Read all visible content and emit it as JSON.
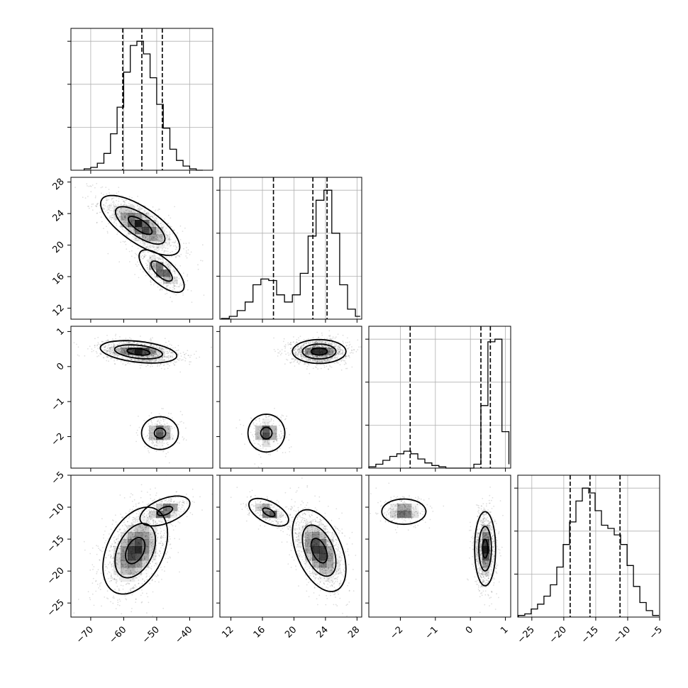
{
  "chart_data": {
    "type": "corner",
    "parameters": [
      {
        "range": [
          -76,
          -33
        ],
        "ticks": [
          -70,
          -60,
          -50,
          -40
        ],
        "tick_labels": [
          "−70",
          "−60",
          "−50",
          "−40"
        ]
      },
      {
        "range": [
          10.6,
          28.6
        ],
        "ticks": [
          12,
          16,
          20,
          24,
          28
        ],
        "tick_labels": [
          "12",
          "16",
          "20",
          "24",
          "28"
        ]
      },
      {
        "range": [
          -2.9,
          1.15
        ],
        "ticks": [
          -2,
          -1,
          0,
          1
        ],
        "tick_labels": [
          "−2",
          "−1",
          "0",
          "1"
        ]
      },
      {
        "range": [
          -27.2,
          -5
        ],
        "ticks": [
          -25,
          -20,
          -15,
          -10,
          -5
        ],
        "tick_labels": [
          "−25",
          "−20",
          "−15",
          "−10",
          "−5"
        ]
      }
    ],
    "histograms": [
      {
        "param": 0,
        "quantiles": [
          -60.3,
          -54.5,
          -48.3
        ],
        "bin_edges": [
          -72,
          -70,
          -68,
          -66,
          -64,
          -62,
          -60,
          -58,
          -56,
          -54,
          -52,
          -50,
          -48,
          -46,
          -44,
          -42,
          -40,
          -38,
          -36
        ],
        "counts": [
          1,
          2,
          5,
          12,
          26,
          45,
          70,
          89,
          92,
          83,
          66,
          47,
          30,
          15,
          7,
          3,
          1,
          0
        ]
      },
      {
        "param": 1,
        "quantiles": [
          17.4,
          22.4,
          24.2
        ],
        "bin_edges": [
          10.8,
          11.8,
          12.8,
          13.8,
          14.8,
          15.8,
          16.8,
          17.8,
          18.8,
          19.8,
          20.8,
          21.8,
          22.8,
          23.8,
          24.8,
          25.8,
          26.8,
          27.8,
          28.4
        ],
        "counts": [
          0.5,
          2,
          6,
          12,
          24,
          28,
          27,
          17,
          12,
          17,
          32,
          58,
          83,
          90,
          60,
          24,
          7,
          2
        ]
      },
      {
        "param": 2,
        "quantiles": [
          -1.72,
          0.3,
          0.57
        ],
        "bin_edges": [
          -2.9,
          -2.7,
          -2.5,
          -2.3,
          -2.1,
          -1.9,
          -1.7,
          -1.5,
          -1.3,
          -1.1,
          -0.9,
          -0.7,
          -0.5,
          -0.3,
          -0.1,
          0.1,
          0.3,
          0.5,
          0.7,
          0.9,
          1.1
        ],
        "counts": [
          1,
          3,
          6,
          9,
          11,
          13,
          11,
          7,
          4,
          2,
          1,
          0,
          0,
          0,
          0,
          3,
          48,
          97,
          99,
          28,
          3
        ]
      },
      {
        "param": 3,
        "quantiles": [
          -19.0,
          -15.9,
          -11.2
        ],
        "bin_edges": [
          -27.1,
          -26.1,
          -25.1,
          -24.1,
          -23.1,
          -22.1,
          -21.1,
          -20.1,
          -19.1,
          -18.1,
          -17.1,
          -16.1,
          -15.1,
          -14.1,
          -13.1,
          -12.1,
          -11.1,
          -10.1,
          -9.1,
          -8.1,
          -7.1,
          -6.1,
          -5.1
        ],
        "counts": [
          1,
          2,
          5,
          8,
          13,
          20,
          31,
          45,
          59,
          72,
          80,
          77,
          66,
          57,
          55,
          51,
          45,
          32,
          19,
          9,
          4,
          1
        ]
      }
    ],
    "pairs": [
      {
        "x": 0,
        "y": 1,
        "modes": [
          {
            "mx": -55,
            "my": 22.5,
            "sx": 6.0,
            "sy": 1.9,
            "r": -0.72,
            "w": 0.72,
            "levels": [
              0.6,
              1.25,
              2.0
            ]
          },
          {
            "mx": -48.5,
            "my": 16.7,
            "sx": 3.8,
            "sy": 1.5,
            "r": -0.7,
            "w": 0.28,
            "levels": [
              0.85,
              1.8
            ]
          }
        ]
      },
      {
        "x": 0,
        "y": 2,
        "modes": [
          {
            "mx": -55.5,
            "my": 0.42,
            "sx": 5.8,
            "sy": 0.16,
            "r": -0.35,
            "w": 0.83,
            "levels": [
              0.6,
              1.25,
              2.0
            ]
          },
          {
            "mx": -49,
            "my": -1.9,
            "sx": 3.1,
            "sy": 0.26,
            "r": 0.0,
            "w": 0.17,
            "levels": [
              0.55,
              1.8
            ]
          }
        ]
      },
      {
        "x": 0,
        "y": 3,
        "modes": [
          {
            "mx": -56.5,
            "my": -16.8,
            "sx": 4.9,
            "sy": 3.4,
            "r": 0.38,
            "w": 0.8,
            "levels": [
              0.6,
              1.25,
              2.0
            ]
          },
          {
            "mx": -47.5,
            "my": -10.6,
            "sx": 4.2,
            "sy": 1.3,
            "r": 0.5,
            "w": 0.2,
            "levels": [
              0.55,
              1.8
            ]
          }
        ]
      },
      {
        "x": 1,
        "y": 2,
        "modes": [
          {
            "mx": 23.2,
            "my": 0.43,
            "sx": 1.7,
            "sy": 0.17,
            "r": 0.0,
            "w": 0.83,
            "levels": [
              0.6,
              1.25,
              2.0
            ]
          },
          {
            "mx": 16.5,
            "my": -1.9,
            "sx": 1.3,
            "sy": 0.3,
            "r": 0.0,
            "w": 0.17,
            "levels": [
              0.55,
              1.8
            ]
          }
        ]
      },
      {
        "x": 1,
        "y": 3,
        "modes": [
          {
            "mx": 23.2,
            "my": -16.8,
            "sx": 1.7,
            "sy": 3.2,
            "r": -0.45,
            "w": 0.8,
            "levels": [
              0.6,
              1.25,
              2.0
            ]
          },
          {
            "mx": 16.8,
            "my": -10.8,
            "sx": 1.4,
            "sy": 1.2,
            "r": -0.55,
            "w": 0.2,
            "levels": [
              0.55,
              1.8
            ]
          }
        ]
      },
      {
        "x": 2,
        "y": 3,
        "modes": [
          {
            "mx": 0.42,
            "my": -16.5,
            "sx": 0.15,
            "sy": 2.9,
            "r": 0.0,
            "w": 0.8,
            "levels": [
              0.5,
              1.2,
              2.0
            ]
          },
          {
            "mx": -1.9,
            "my": -10.7,
            "sx": 0.35,
            "sy": 1.1,
            "r": 0.0,
            "w": 0.2,
            "levels": [
              1.8
            ]
          }
        ]
      }
    ],
    "grid": true,
    "line_color": "#000000",
    "density_color": "#000000",
    "point_color": "#000000"
  }
}
